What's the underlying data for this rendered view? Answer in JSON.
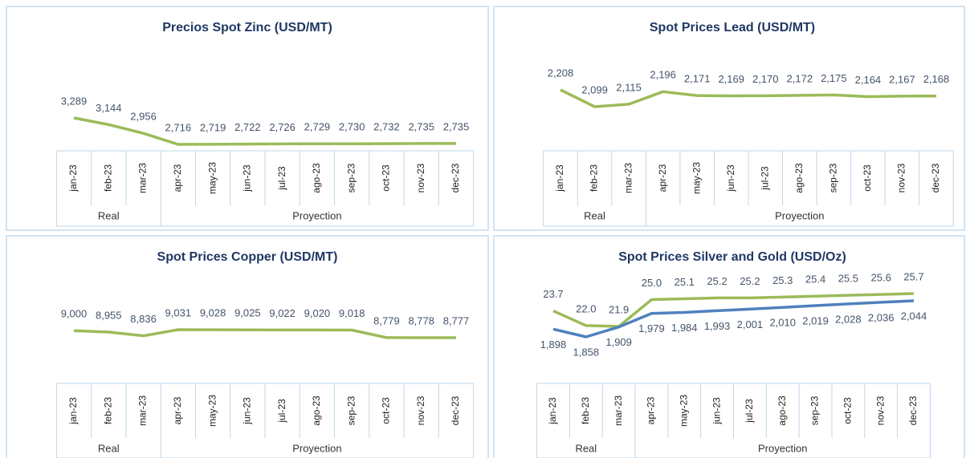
{
  "chart_data": [
    {
      "type": "line",
      "title": "Precios Spot Zinc (USD/MT)",
      "categories": [
        "jan-23",
        "feb-23",
        "mar-23",
        "apr-23",
        "may-23",
        "jun-23",
        "jul-23",
        "ago-23",
        "sep-23",
        "oct-23",
        "nov-23",
        "dec-23"
      ],
      "groups": [
        {
          "label": "Real",
          "count": 3
        },
        {
          "label": "Proyection",
          "count": 9
        }
      ],
      "series": [
        {
          "color": "#9bbb59",
          "values": [
            3289,
            3144,
            2956,
            2716,
            2719,
            2722,
            2726,
            2729,
            2730,
            2732,
            2735,
            2735
          ],
          "value_labels": [
            "3,289",
            "3,144",
            "2,956",
            "2,716",
            "2,719",
            "2,722",
            "2,726",
            "2,729",
            "2,730",
            "2,732",
            "2,735",
            "2,735"
          ]
        }
      ]
    },
    {
      "type": "line",
      "title": "Spot Prices Lead (USD/MT)",
      "categories": [
        "jan-23",
        "feb-23",
        "mar-23",
        "apr-23",
        "may-23",
        "jun-23",
        "jul-23",
        "ago-23",
        "sep-23",
        "oct-23",
        "nov-23",
        "dec-23"
      ],
      "groups": [
        {
          "label": "Real",
          "count": 3
        },
        {
          "label": "Proyection",
          "count": 9
        }
      ],
      "series": [
        {
          "color": "#9bbb59",
          "values": [
            2208,
            2099,
            2115,
            2196,
            2171,
            2169,
            2170,
            2172,
            2175,
            2164,
            2167,
            2168
          ],
          "value_labels": [
            "2,208",
            "2,099",
            "2,115",
            "2,196",
            "2,171",
            "2,169",
            "2,170",
            "2,172",
            "2,175",
            "2,164",
            "2,167",
            "2,168"
          ]
        }
      ]
    },
    {
      "type": "line",
      "title": "Spot Prices Copper (USD/MT)",
      "categories": [
        "jan-23",
        "feb-23",
        "mar-23",
        "apr-23",
        "may-23",
        "jun-23",
        "jul-23",
        "ago-23",
        "sep-23",
        "oct-23",
        "nov-23",
        "dec-23"
      ],
      "groups": [
        {
          "label": "Real",
          "count": 3
        },
        {
          "label": "Proyection",
          "count": 9
        }
      ],
      "series": [
        {
          "color": "#9bbb59",
          "values": [
            9000,
            8955,
            8836,
            9031,
            9028,
            9025,
            9022,
            9020,
            9018,
            8779,
            8778,
            8777
          ],
          "value_labels": [
            "9,000",
            "8,955",
            "8,836",
            "9,031",
            "9,028",
            "9,025",
            "9,022",
            "9,020",
            "9,018",
            "8,779",
            "8,778",
            "8,777"
          ]
        }
      ]
    },
    {
      "type": "line",
      "title": "Spot Prices Silver and Gold (USD/Oz)",
      "categories": [
        "jan-23",
        "feb-23",
        "mar-23",
        "apr-23",
        "may-23",
        "jun-23",
        "jul-23",
        "ago-23",
        "sep-23",
        "oct-23",
        "nov-23",
        "dec-23"
      ],
      "groups": [
        {
          "label": "Real",
          "count": 3
        },
        {
          "label": "Proyection",
          "count": 9
        }
      ],
      "series": [
        {
          "color": "#9bbb59",
          "values": [
            23.7,
            22.0,
            21.9,
            25.0,
            25.1,
            25.2,
            25.2,
            25.3,
            25.4,
            25.5,
            25.6,
            25.7
          ],
          "value_labels": [
            "23.7",
            "22.0",
            "21.9",
            "25.0",
            "25.1",
            "25.2",
            "25.2",
            "25.3",
            "25.4",
            "25.5",
            "25.6",
            "25.7"
          ]
        },
        {
          "color": "#4f81bd",
          "axis": "y2",
          "values": [
            1898,
            1858,
            1909,
            1979,
            1984,
            1993,
            2001,
            2010,
            2019,
            2028,
            2036,
            2044
          ],
          "value_labels": [
            "1,898",
            "1,858",
            "1,909",
            "1,979",
            "1,984",
            "1,993",
            "2,001",
            "2,010",
            "2,019",
            "2,028",
            "2,036",
            "2,044"
          ]
        }
      ]
    }
  ]
}
